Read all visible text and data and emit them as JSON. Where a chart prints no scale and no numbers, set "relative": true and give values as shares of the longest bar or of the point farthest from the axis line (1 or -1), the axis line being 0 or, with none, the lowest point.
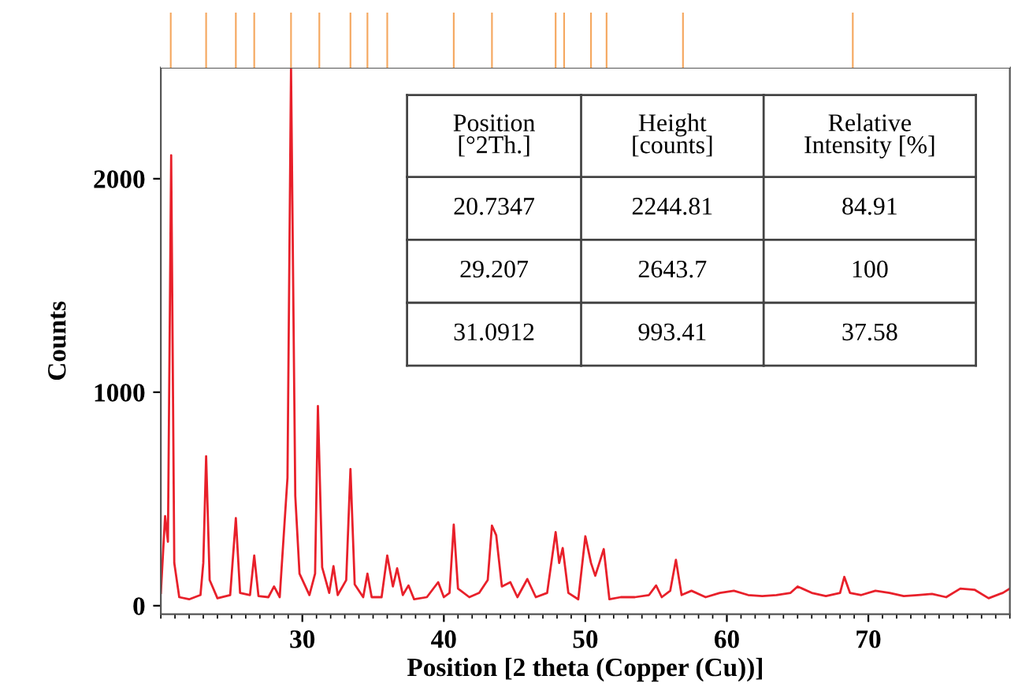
{
  "chart_data": [
    {
      "type": "line",
      "xlabel": "Position [2 theta (Copper (Cu))]",
      "ylabel": "Counts",
      "xlim": [
        20,
        80
      ],
      "ylim": [
        -40,
        2520
      ],
      "xticks": [
        30,
        40,
        50,
        60,
        70
      ],
      "yticks": [
        0,
        1000,
        2000
      ],
      "grid": false,
      "marker": "none",
      "line_style": "solid",
      "annotations": [
        "Position [°2Th.]",
        "Height [counts]",
        "Relative Intensity [%]",
        "20.7347",
        "2244.81",
        "84.91",
        "29.207",
        "2643.7",
        "100",
        "31.0912",
        "993.41",
        "37.58"
      ],
      "series": [
        {
          "color": "#e8202a",
          "x": [
            20.0,
            20.3,
            20.5,
            20.73,
            20.95,
            21.3,
            22.0,
            22.8,
            23.0,
            23.2,
            23.45,
            24.0,
            24.9,
            25.3,
            25.6,
            26.3,
            26.6,
            26.9,
            27.6,
            28.0,
            28.4,
            28.95,
            29.2,
            29.5,
            29.8,
            30.5,
            30.9,
            31.1,
            31.4,
            31.9,
            32.2,
            32.5,
            33.1,
            33.4,
            33.7,
            34.3,
            34.6,
            34.9,
            35.6,
            36.0,
            36.4,
            36.7,
            37.1,
            37.5,
            37.9,
            38.8,
            39.6,
            40.0,
            40.4,
            40.7,
            41.0,
            41.8,
            42.5,
            43.1,
            43.4,
            43.7,
            44.1,
            44.7,
            45.2,
            45.9,
            46.5,
            47.3,
            47.9,
            48.15,
            48.4,
            48.8,
            49.5,
            50.0,
            50.4,
            50.7,
            51.3,
            51.7,
            52.5,
            53.5,
            54.5,
            55.0,
            55.4,
            56.0,
            56.4,
            56.8,
            57.5,
            58.5,
            59.5,
            60.5,
            61.5,
            62.5,
            63.5,
            64.5,
            65.0,
            66.0,
            67.0,
            68.0,
            68.3,
            68.7,
            69.5,
            70.5,
            71.5,
            72.5,
            73.5,
            74.5,
            75.5,
            76.5,
            77.5,
            78.5,
            79.5,
            80.0
          ],
          "values": [
            60,
            420,
            300,
            2110,
            200,
            40,
            30,
            50,
            200,
            700,
            120,
            35,
            50,
            410,
            60,
            50,
            235,
            45,
            40,
            90,
            40,
            600,
            2520,
            515,
            150,
            50,
            150,
            935,
            180,
            60,
            185,
            50,
            120,
            640,
            100,
            40,
            150,
            40,
            40,
            235,
            90,
            175,
            50,
            95,
            30,
            40,
            110,
            40,
            60,
            380,
            80,
            40,
            60,
            120,
            375,
            330,
            90,
            110,
            40,
            125,
            40,
            60,
            345,
            200,
            270,
            60,
            30,
            325,
            200,
            140,
            265,
            30,
            40,
            40,
            50,
            95,
            40,
            70,
            215,
            50,
            70,
            40,
            60,
            70,
            50,
            45,
            50,
            60,
            90,
            60,
            45,
            60,
            135,
            60,
            50,
            70,
            60,
            45,
            50,
            55,
            40,
            80,
            75,
            35,
            60,
            80
          ]
        }
      ]
    },
    {
      "type": "bar",
      "relative": true,
      "tick_labels": false,
      "xlim": [
        20,
        80
      ],
      "x": [
        20.7,
        23.2,
        25.3,
        26.6,
        29.2,
        31.2,
        33.4,
        34.6,
        36.0,
        40.7,
        43.4,
        47.9,
        48.5,
        50.4,
        51.5,
        56.9,
        68.9
      ],
      "values": [
        1,
        1,
        1,
        1,
        1,
        1,
        1,
        1,
        1,
        1,
        1,
        1,
        1,
        1,
        1,
        1,
        1
      ],
      "color": "#f5a860"
    }
  ]
}
